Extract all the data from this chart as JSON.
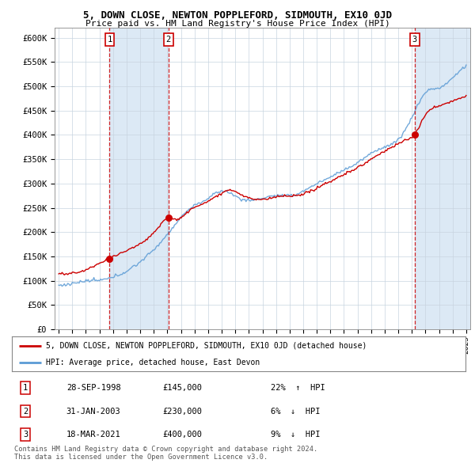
{
  "title": "5, DOWN CLOSE, NEWTON POPPLEFORD, SIDMOUTH, EX10 0JD",
  "subtitle": "Price paid vs. HM Land Registry's House Price Index (HPI)",
  "xlim": [
    1994.7,
    2025.3
  ],
  "ylim": [
    0,
    620000
  ],
  "yticks": [
    0,
    50000,
    100000,
    150000,
    200000,
    250000,
    300000,
    350000,
    400000,
    450000,
    500000,
    550000,
    600000
  ],
  "ytick_labels": [
    "£0",
    "£50K",
    "£100K",
    "£150K",
    "£200K",
    "£250K",
    "£300K",
    "£350K",
    "£400K",
    "£450K",
    "£500K",
    "£550K",
    "£600K"
  ],
  "transactions": [
    {
      "num": 1,
      "date": "28-SEP-1998",
      "price": 145000,
      "pct": "22%",
      "dir": "↑",
      "year": 1998.75
    },
    {
      "num": 2,
      "date": "31-JAN-2003",
      "price": 230000,
      "pct": "6%",
      "dir": "↓",
      "year": 2003.08
    },
    {
      "num": 3,
      "date": "18-MAR-2021",
      "price": 400000,
      "pct": "9%",
      "dir": "↓",
      "year": 2021.21
    }
  ],
  "legend_label_red": "5, DOWN CLOSE, NEWTON POPPLEFORD, SIDMOUTH, EX10 0JD (detached house)",
  "legend_label_blue": "HPI: Average price, detached house, East Devon",
  "footnote": "Contains HM Land Registry data © Crown copyright and database right 2024.\nThis data is licensed under the Open Government Licence v3.0.",
  "red_color": "#cc0000",
  "blue_color": "#5b9bd5",
  "shade_color": "#dce9f5",
  "background_color": "#ffffff",
  "plot_bg_color": "#ffffff",
  "grid_color": "#c8d4e0"
}
